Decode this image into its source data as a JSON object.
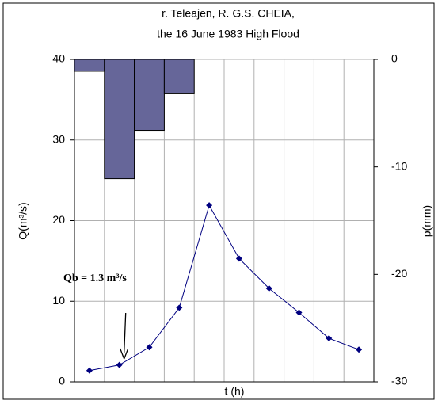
{
  "chart_data": {
    "type": "bar-line",
    "title": [
      "r. Teleajen, R. G.S. CHEIA,",
      "the 16 June 1983 High Flood"
    ],
    "x_label": "t (h)",
    "y_label": "Q(m³/s)",
    "y2_label": "p(mm)",
    "categories": [
      null,
      null,
      null,
      null,
      null,
      null,
      null,
      null,
      null,
      null
    ],
    "series": [
      {
        "name": "p",
        "kind": "bar",
        "axis": "y2",
        "color": "#666699",
        "values": [
          -1.1,
          -11.1,
          -6.6,
          -3.2,
          null,
          null,
          null,
          null,
          null,
          null
        ]
      },
      {
        "name": "Q",
        "kind": "line",
        "color": "#000080",
        "values": [
          1.4,
          2.1,
          4.3,
          9.2,
          21.9,
          15.3,
          11.6,
          8.6,
          5.4,
          4.0
        ]
      }
    ],
    "ylim": [
      0,
      40
    ],
    "yticks": [
      0,
      10,
      20,
      30,
      40
    ],
    "y2lim": [
      -30,
      0
    ],
    "y2ticks": [
      -30,
      -20,
      -10,
      0
    ],
    "grid": true,
    "annotation": {
      "text": "Qb = 1.3 m³/s",
      "category": 1
    }
  }
}
